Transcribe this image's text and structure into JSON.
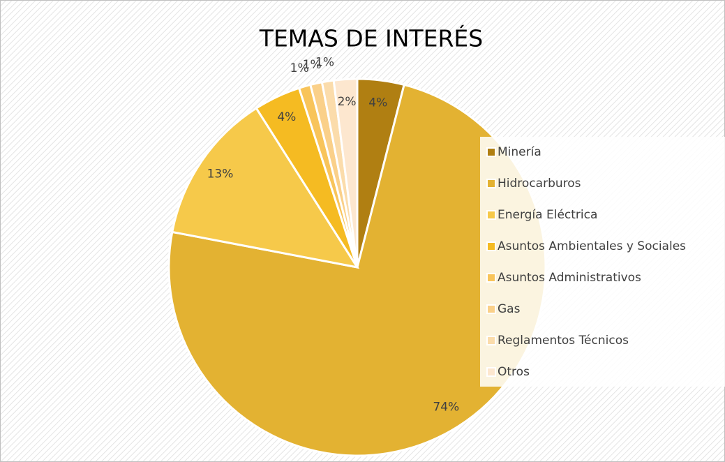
{
  "chart_data": {
    "type": "pie",
    "title": "TEMAS DE INTERÉS",
    "categories": [
      "Minería",
      "Hidrocarburos",
      "Energía Eléctrica",
      "Asuntos Ambientales y Sociales",
      "Asuntos Administrativos",
      "Gas",
      "Reglamentos Técnicos",
      "Otros"
    ],
    "values": [
      4,
      74,
      13,
      4,
      1,
      1,
      1,
      2
    ],
    "value_labels": [
      "4%",
      "74%",
      "13%",
      "4%",
      "1%",
      "1%",
      "1%",
      "2%"
    ],
    "colors": [
      "#b07f12",
      "#e3b232",
      "#f6c94a",
      "#f5bb22",
      "#f8c45a",
      "#fad089",
      "#fbdcab",
      "#fde7cf"
    ],
    "legend": "right"
  }
}
